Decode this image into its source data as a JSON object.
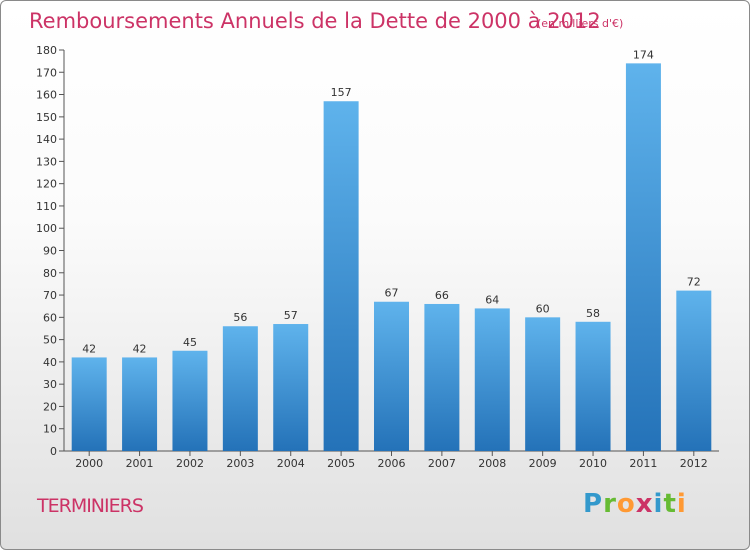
{
  "header": {
    "title": "Remboursements Annuels de la Dette de 2000 à 2012",
    "unit": "(en milliers d'€)"
  },
  "footer": {
    "commune": "TERMINIERS"
  },
  "logo": {
    "text": "Proxiti",
    "letters": [
      {
        "ch": "P",
        "color": "#3399cc"
      },
      {
        "ch": "r",
        "color": "#66bb33"
      },
      {
        "ch": "o",
        "color": "#ff9933"
      },
      {
        "ch": "x",
        "color": "#cc3366"
      },
      {
        "ch": "i",
        "color": "#3399cc"
      },
      {
        "ch": "t",
        "color": "#66bb33"
      },
      {
        "ch": "i",
        "color": "#ff9933"
      }
    ]
  },
  "chart_data": {
    "type": "bar",
    "title": "Remboursements Annuels de la Dette de 2000 à 2012",
    "categories": [
      "2000",
      "2001",
      "2002",
      "2003",
      "2004",
      "2005",
      "2006",
      "2007",
      "2008",
      "2009",
      "2010",
      "2011",
      "2012"
    ],
    "values": [
      42,
      42,
      45,
      56,
      57,
      157,
      67,
      66,
      64,
      60,
      58,
      174,
      72
    ],
    "data_labels": [
      "42",
      "42",
      "45",
      "56",
      "57",
      "157",
      "67",
      "66",
      "64",
      "60",
      "58",
      "174",
      "72"
    ],
    "ylim": [
      0,
      180
    ],
    "yticks": [
      0,
      10,
      20,
      30,
      40,
      50,
      60,
      70,
      80,
      90,
      100,
      110,
      120,
      130,
      140,
      150,
      160,
      170,
      180
    ],
    "grid": false,
    "bar_color": "#4a9ee0",
    "bar_color_dark": "#2a7bc0"
  }
}
